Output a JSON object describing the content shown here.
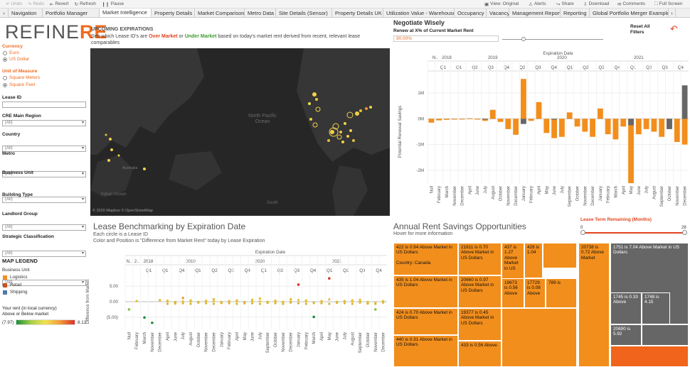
{
  "toolbar": {
    "items": [
      "Undo",
      "Redo",
      "Revert",
      "Refresh",
      "Pause"
    ],
    "right_items": [
      "View: Original",
      "Alerts",
      "Share",
      "Download",
      "Comments",
      "Full Screen"
    ]
  },
  "tabs": [
    "Navigation",
    "Portfolio Manager",
    "Market Intelligence",
    "Property Details",
    "Market Comparison",
    "Metro Data",
    "Site Details (Sensor)",
    "Property Details UK",
    "Utilization Value - Warehouse",
    "Occupancy",
    "Vacancy",
    "Management Report",
    "Reporting",
    "Global Portfolio Merger Example"
  ],
  "logo": {
    "prefix": "REFINE",
    "suffix": "RE"
  },
  "filters": {
    "currency_label": "Currency",
    "currency_options": [
      "Euro",
      "US Dollar"
    ],
    "unit_label": "Unit of Measure",
    "unit_options": [
      "Square Meters",
      "Square Feet"
    ],
    "lease_id_label": "Lease ID",
    "cre_region_label": "CRE Main Region",
    "country_label": "Country",
    "metro_label": "Metro",
    "business_unit_label": "Business Unit",
    "building_type_label": "Building Type",
    "landlord_label": "Landlord Group",
    "strategic_label": "Strategic Classification",
    "all_value": "(All)"
  },
  "map_legend": {
    "title": "MAP LEGEND",
    "bu_label": "Business Unit",
    "items": [
      {
        "label": "Logistics",
        "color": "#f28e1c"
      },
      {
        "label": "Retail",
        "color": "#c8511b"
      },
      {
        "label": "Shipping",
        "color": "#4e79a7"
      }
    ],
    "rent_label_1": "Your rent (in local currency)",
    "rent_label_2": "Above or Below market",
    "min": "(7.97)",
    "max": "8.12"
  },
  "upcoming": {
    "title": "UPCOMING EXPIRATIONS",
    "desc_pre": "See which Lease ID's are ",
    "over": "Over Market",
    "mid": " or ",
    "under": "Under Market",
    "desc_post": " based on today's market rent derived from recent, relevant lease comparables",
    "map_labels": {
      "pacific": "North Pacific Ocean",
      "indian": "Indian Ocean",
      "south": "South",
      "australia": "Australia",
      "credit": "© 2020 Mapbox © OpenStreetMap"
    }
  },
  "negotiate": {
    "title": "Negotiate Wisely",
    "subtitle": "Renew at X% of Current Market Rent",
    "value": "90.00%",
    "reset": "Reset All Filters"
  },
  "savings_chart": {
    "header": "Expiration Date",
    "ylabel": "Potential Renewal Savings",
    "yticks": [
      "1M",
      "0M",
      "-1M",
      "-2M"
    ],
    "years": [
      "N..",
      "2018",
      "2019",
      "2020",
      "2021"
    ],
    "quarters": [
      "Q1",
      "Q1",
      "Q2",
      "Q3",
      "Q4",
      "Q2",
      "Q3",
      "Q4",
      "Q1",
      "Q2",
      "Q3",
      "Q4",
      "Q1",
      "Q2",
      "Q3",
      "Q4"
    ],
    "months": [
      "Null",
      "February",
      "March",
      "November",
      "December",
      "April",
      "June",
      "July",
      "August",
      "October",
      "November",
      "December",
      "January",
      "February",
      "April",
      "May",
      "June",
      "July",
      "September",
      "October",
      "November",
      "December",
      "January",
      "February",
      "March",
      "April",
      "May",
      "June",
      "July",
      "August",
      "September",
      "October",
      "November",
      "December"
    ]
  },
  "chart_data": [
    {
      "type": "bar",
      "title": "Negotiate Wisely",
      "xlabel": "Expiration Date",
      "ylabel": "Potential Renewal Savings",
      "ylim": [
        -2500000,
        1500000
      ],
      "categories": [
        "Null",
        "Feb 2018",
        "Mar 2018",
        "Nov 2018",
        "Dec 2018",
        "Apr 2019",
        "Jun 2019",
        "Jul 2019",
        "Aug 2019",
        "Oct 2019",
        "Nov 2019",
        "Dec 2019",
        "Jan 2020",
        "Feb 2020",
        "Apr 2020",
        "May 2020",
        "Jun 2020",
        "Jul 2020",
        "Sep 2020",
        "Oct 2020",
        "Nov 2020",
        "Dec 2020",
        "Jan 2021",
        "Feb 2021",
        "Mar 2021",
        "Apr 2021",
        "May 2021",
        "Jun 2021",
        "Jul 2021",
        "Aug 2021",
        "Sep 2021",
        "Oct 2021",
        "Nov 2021",
        "Dec 2021"
      ],
      "series": [
        {
          "name": "Logistics",
          "values": [
            -150000,
            -60000,
            -40000,
            -30000,
            -20000,
            20000,
            -30000,
            -80000,
            350000,
            -120000,
            -400000,
            -620000,
            1550000,
            -80000,
            650000,
            -550000,
            -750000,
            -700000,
            250000,
            -300000,
            -500000,
            -700000,
            400000,
            -600000,
            -800000,
            -300000,
            -2500000,
            -600000,
            -400000,
            -500000,
            -700000,
            -300000,
            -900000,
            -1000000
          ]
        },
        {
          "name": "Shipping",
          "values": [
            0,
            0,
            0,
            0,
            0,
            0,
            0,
            -20000,
            0,
            0,
            0,
            0,
            -200000,
            0,
            0,
            0,
            -30000,
            0,
            0,
            0,
            0,
            0,
            0,
            0,
            0,
            0,
            -250000,
            0,
            0,
            0,
            0,
            -400000,
            0,
            1300000
          ]
        }
      ]
    },
    {
      "type": "scatter",
      "title": "Lease Benchmarking by Expiration Date",
      "xlabel": "Expiration Date",
      "ylabel": "Difference from Market",
      "ylim": [
        -8,
        8
      ],
      "yticks": [
        "5.00",
        "0.00",
        "(5.00)"
      ],
      "series": [
        {
          "name": "Leases",
          "values": [
            -2.5,
            0.2,
            -5.1,
            -6.8,
            0.5,
            0.3,
            -0.6,
            1.2,
            0.4,
            -0.1,
            0.3,
            0.8,
            -0.4,
            0.2,
            0.4,
            -0.5,
            0.6,
            1.0,
            -0.3,
            0.3,
            -0.2,
            0.8,
            5.5,
            0.4,
            -4.9,
            0.2,
            7.5,
            -0.3,
            0.2,
            0.4,
            0.6,
            -0.6
          ]
        }
      ]
    }
  ],
  "benchmark": {
    "title": "Lease Benchmarking by Expiration Date",
    "line1": "Each circle is a Lease ID",
    "line2": "Color and Position is \"Difference from Market Rent\" today by Lease Expiration",
    "header": "Expiration Date",
    "ylabel": "Difference from Market",
    "yticks": [
      "5.00",
      "0.00",
      "(5.00)"
    ],
    "years": [
      "N..",
      "2..",
      "2018",
      "2019",
      "2020",
      "2021"
    ],
    "quarters": [
      "Q1",
      "Q1",
      "Q4",
      "Q1",
      "Q2",
      "Q3",
      "Q4",
      "Q1",
      "Q2",
      "Q3",
      "Q4",
      "Q1",
      "Q2",
      "Q3",
      "Q4"
    ],
    "months": [
      "Null",
      "February",
      "March",
      "November",
      "December",
      "April",
      "June",
      "July",
      "August",
      "October",
      "November",
      "December",
      "January",
      "February",
      "April",
      "May",
      "June",
      "July",
      "September",
      "October",
      "November",
      "December",
      "January",
      "February",
      "March",
      "April",
      "May",
      "June",
      "July",
      "August",
      "September",
      "October",
      "November",
      "December"
    ]
  },
  "annual": {
    "title": "Annual Rent Savings Opportunities",
    "subtitle": "Hover for more information",
    "cells": [
      {
        "text": "422 is 0.94 Above Market in US Dollars\n\nCountry: Canada"
      },
      {
        "text": "21811 is 0.70 Above Market in US Dollars"
      },
      {
        "text": "437 is 1.27 Above Market in US"
      },
      {
        "text": "426 is 1.04"
      },
      {
        "text": "20738 is 0.72 Above Market"
      },
      {
        "text": "1751 is 7.04 Above Market in US Dollars"
      },
      {
        "text": "435 is 1.04 Above Market in US Dollars"
      },
      {
        "text": "20660 is 0.97 Above Market in US Dollars"
      },
      {
        "text": "19673 is 0.56 Above"
      },
      {
        "text": "17729 is 0.08 Above"
      },
      {
        "text": "789 is"
      },
      {
        "text": "424 is 0.70 Above Market in US Dollars"
      },
      {
        "text": "19377 is 0.45 Above Market in US Dollars"
      },
      {
        "text": "440 is 0.31 Above Market in US Dollars"
      },
      {
        "text": "433 is 0.56 Above"
      },
      {
        "text": "1745 is 0.33 Above"
      },
      {
        "text": "1748 is 4.15"
      },
      {
        "text": "20690 is 5.92"
      }
    ]
  },
  "lease_term": {
    "label": "Lease Term Remaining (Months)",
    "min": "0",
    "max": "28"
  }
}
